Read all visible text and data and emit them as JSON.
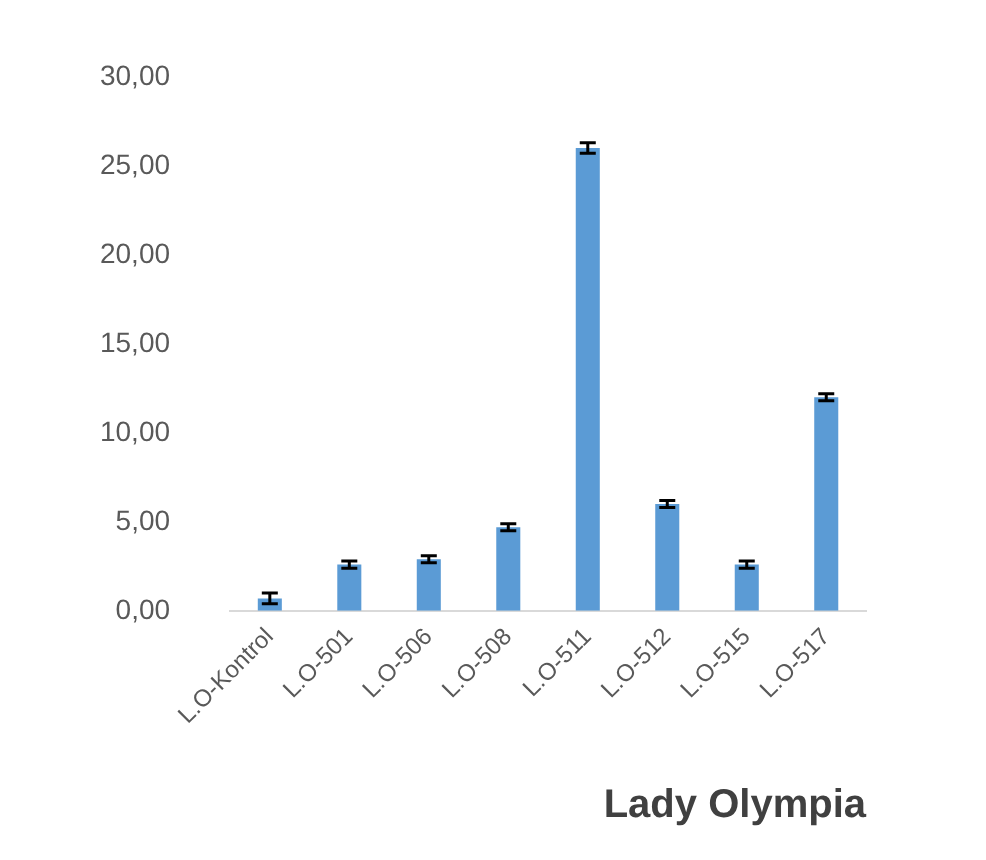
{
  "chart_data": {
    "type": "bar",
    "title": "Lady Olympia",
    "categories": [
      "L.O-Kontrol",
      "L.O-501",
      "L.O-506",
      "L.O-508",
      "L.O-511",
      "L.O-512",
      "L.O-515",
      "L.O-517"
    ],
    "values": [
      0.7,
      2.6,
      2.9,
      4.7,
      26.0,
      6.0,
      2.6,
      12.0
    ],
    "errors": [
      0.3,
      0.2,
      0.2,
      0.2,
      0.3,
      0.2,
      0.2,
      0.2
    ],
    "color": "#5b9bd5",
    "ylim": [
      0,
      30
    ],
    "yticks": [
      {
        "value": 0,
        "label": "0,00"
      },
      {
        "value": 5,
        "label": "5,00"
      },
      {
        "value": 10,
        "label": "10,00"
      },
      {
        "value": 15,
        "label": "15,00"
      },
      {
        "value": 20,
        "label": "20,00"
      },
      {
        "value": 25,
        "label": "25,00"
      },
      {
        "value": 30,
        "label": "30,00"
      }
    ],
    "grid": false,
    "legend": false
  }
}
